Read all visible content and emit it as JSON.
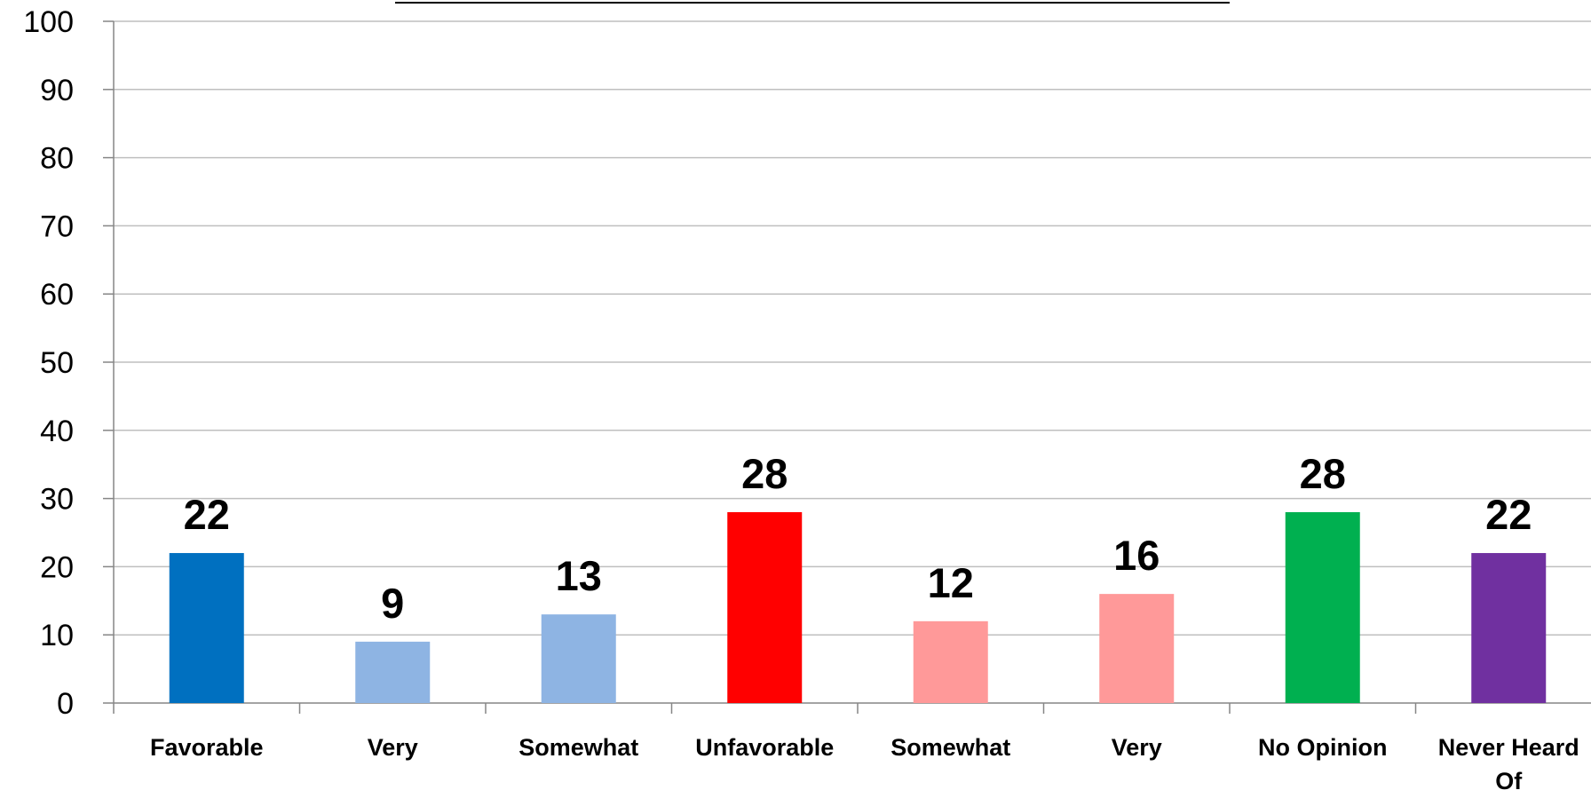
{
  "chart_data": {
    "type": "bar",
    "categories": [
      "Favorable",
      "Very",
      "Somewhat",
      "Unfavorable",
      "Somewhat",
      "Very",
      "No Opinion",
      "Never Heard Of"
    ],
    "category_lines": [
      [
        "Favorable"
      ],
      [
        "Very"
      ],
      [
        "Somewhat"
      ],
      [
        "Unfavorable"
      ],
      [
        "Somewhat"
      ],
      [
        "Very"
      ],
      [
        "No Opinion"
      ],
      [
        "Never Heard",
        "Of"
      ]
    ],
    "values": [
      22,
      9,
      13,
      28,
      12,
      16,
      28,
      22
    ],
    "colors": [
      "#0070C0",
      "#8EB4E3",
      "#8EB4E3",
      "#FF0000",
      "#FF9999",
      "#FF9999",
      "#00B050",
      "#7030A0"
    ],
    "ylim": [
      0,
      100
    ],
    "yticks": [
      0,
      10,
      20,
      30,
      40,
      50,
      60,
      70,
      80,
      90,
      100
    ],
    "grid": true,
    "grid_color": "#BFBFBF",
    "legend": "none"
  }
}
